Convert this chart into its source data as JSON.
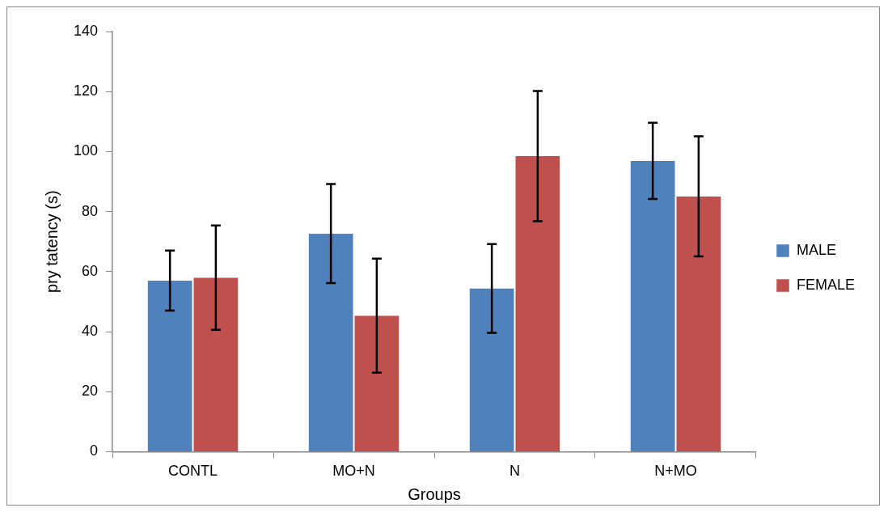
{
  "chart_data": {
    "type": "bar",
    "xlabel": "Groups",
    "ylabel": "pry tatency (s)",
    "categories": [
      "CONTL",
      "MO+N",
      "N",
      "N+MO"
    ],
    "series": [
      {
        "name": "MALE",
        "color": "#4f81bd",
        "values": [
          57,
          72.7,
          54.4,
          96.9
        ],
        "errors": [
          10,
          16.5,
          14.8,
          12.7
        ]
      },
      {
        "name": "FEMALE",
        "color": "#c0504d",
        "values": [
          58,
          45.3,
          98.5,
          85.1
        ],
        "errors": [
          17.4,
          19,
          21.7,
          20
        ]
      }
    ],
    "ylim": [
      0,
      140
    ],
    "yticks": [
      0,
      20,
      40,
      60,
      80,
      100,
      120,
      140
    ],
    "grid": false,
    "legend": "right"
  }
}
